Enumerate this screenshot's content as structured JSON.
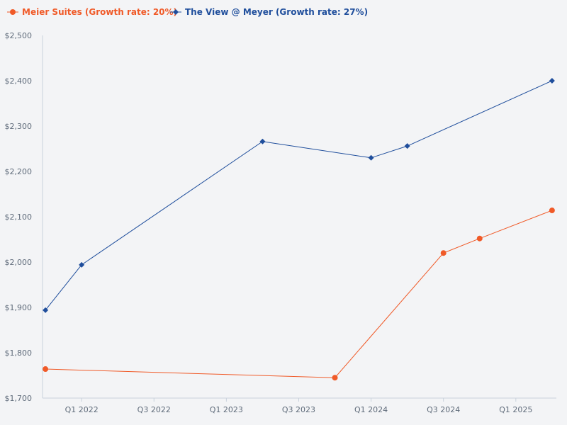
{
  "chart_data": {
    "type": "line",
    "title": "",
    "xlabel": "",
    "ylabel": "",
    "ylim": [
      1700,
      2500
    ],
    "yticks": [
      1700,
      1800,
      1900,
      2000,
      2100,
      2200,
      2300,
      2400,
      2500
    ],
    "ytick_labels": [
      "$1,700",
      "$1,800",
      "$1,900",
      "$2,000",
      "$2,100",
      "$2,200",
      "$2,300",
      "$2,400",
      "$2,500"
    ],
    "xlim": [
      2021.73,
      2025.28
    ],
    "xticks": [
      2022.0,
      2022.5,
      2023.0,
      2023.5,
      2024.0,
      2024.5,
      2025.0
    ],
    "xtick_labels": [
      "Q1 2022",
      "Q3 2022",
      "Q1 2023",
      "Q3 2023",
      "Q1 2024",
      "Q3 2024",
      "Q1 2025"
    ],
    "legend_position": "top-left",
    "series": [
      {
        "name": "Meier Suites (Growth rate: 20%)",
        "color": "#f05a28",
        "marker": "circle",
        "x": [
          2021.75,
          2023.75,
          2024.5,
          2024.75,
          2025.25
        ],
        "values": [
          1764,
          1745,
          2020,
          2052,
          2114
        ]
      },
      {
        "name": "The View @ Meyer (Growth rate: 27%)",
        "color": "#1f4e9c",
        "marker": "diamond",
        "x": [
          2021.75,
          2022.0,
          2023.25,
          2024.0,
          2024.25,
          2025.25
        ],
        "values": [
          1894,
          1994,
          2266,
          2230,
          2256,
          2400
        ]
      }
    ]
  }
}
